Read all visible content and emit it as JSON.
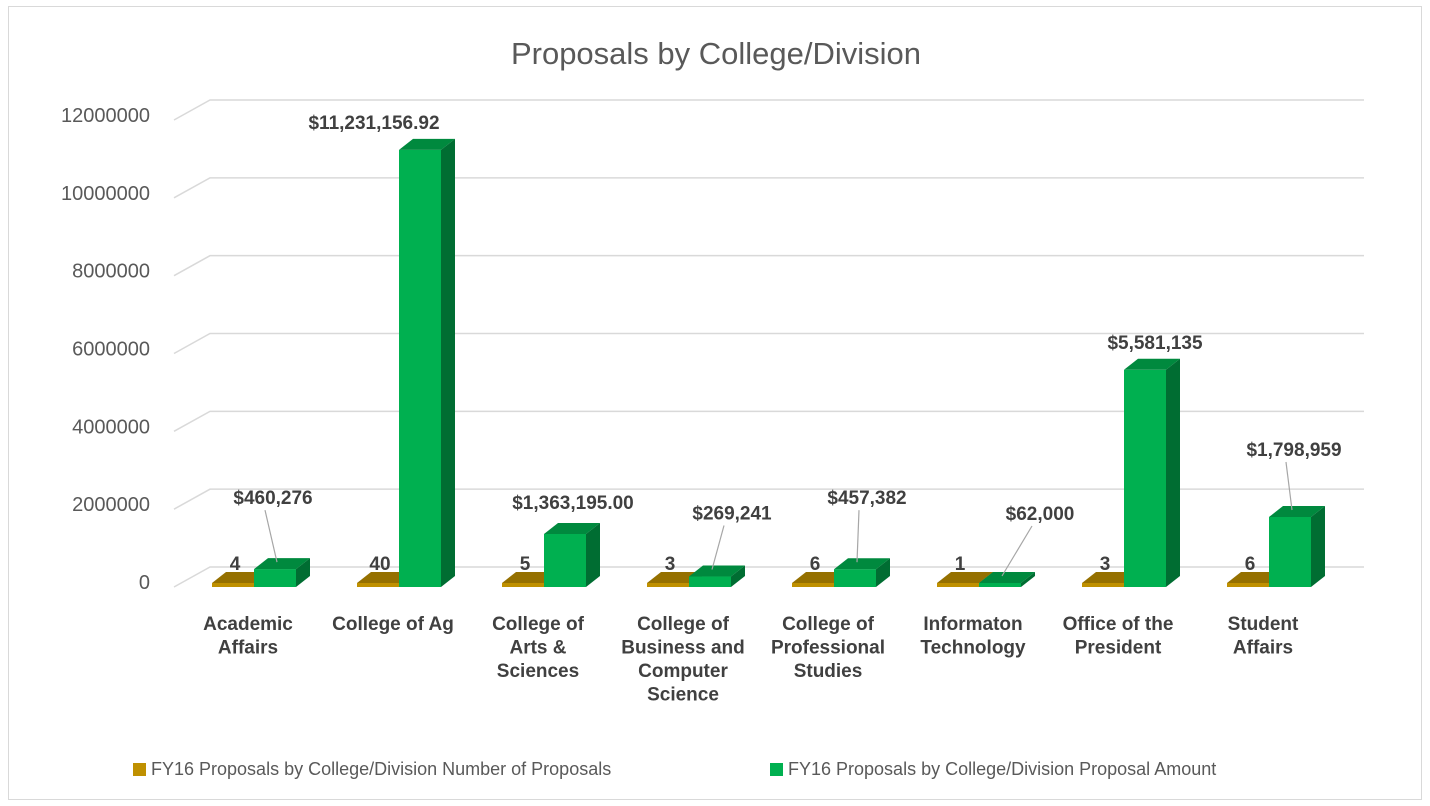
{
  "chart_data": {
    "type": "bar",
    "title": "Proposals by College/Division",
    "xlabel": "",
    "ylabel": "",
    "ylim": [
      0,
      12000000
    ],
    "yticks": [
      "0",
      "2000000",
      "4000000",
      "6000000",
      "8000000",
      "10000000",
      "12000000"
    ],
    "grid": true,
    "legend_position": "bottom",
    "categories": [
      [
        "Academic",
        "Affairs"
      ],
      [
        "College of Ag"
      ],
      [
        "College of",
        "Arts &",
        "Sciences"
      ],
      [
        "College of",
        "Business and",
        "Computer",
        "Science"
      ],
      [
        "College of",
        "Professional",
        "Studies"
      ],
      [
        "Informaton",
        "Technology"
      ],
      [
        "Office of the",
        "President"
      ],
      [
        "Student",
        "Affairs"
      ]
    ],
    "series": [
      {
        "name": "FY16 Proposals by College/Division Number of Proposals",
        "color": "#bf9000",
        "values": [
          4,
          40,
          5,
          3,
          6,
          1,
          3,
          6
        ],
        "labels": [
          "4",
          "40",
          "5",
          "3",
          "6",
          "1",
          "3",
          "6"
        ]
      },
      {
        "name": "FY16 Proposals by College/Division Proposal Amount",
        "color": "#00b050",
        "values": [
          460276,
          11231156.92,
          1363195.0,
          269241,
          457382,
          62000,
          5581135,
          1798959
        ],
        "labels": [
          "$460,276",
          "$11,231,156.92",
          "$1,363,195.00",
          "$269,241",
          "$457,382",
          "$62,000",
          "$5,581,135",
          "$1,798,959"
        ]
      }
    ]
  }
}
